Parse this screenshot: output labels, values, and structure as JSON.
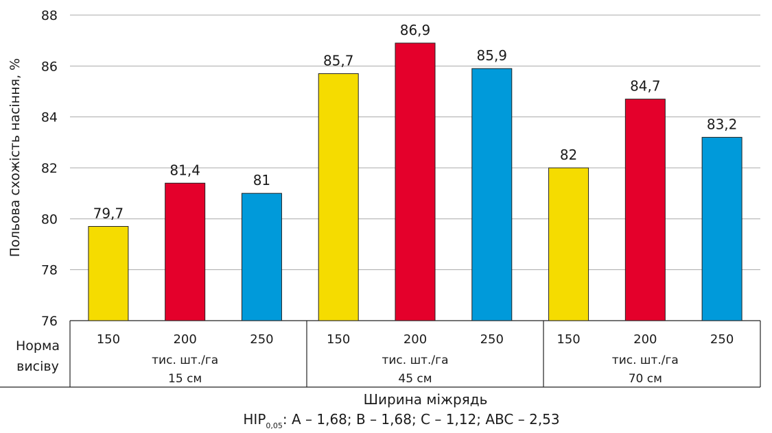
{
  "chart_data": {
    "type": "bar",
    "ylabel": "Польова схожість насіння, %",
    "xlabel": "Ширина міжрядь",
    "ylim": [
      76,
      88
    ],
    "yticks": [
      76,
      78,
      80,
      82,
      84,
      86,
      88
    ],
    "grid": true,
    "row_header": [
      "Норма",
      "висіву"
    ],
    "groups": [
      {
        "label": "15 см",
        "unit": "тис. шт./га",
        "categories": [
          "150",
          "200",
          "250"
        ],
        "values": [
          79.7,
          81.4,
          81
        ],
        "value_labels": [
          "79,7",
          "81,4",
          "81"
        ]
      },
      {
        "label": "45 см",
        "unit": "тис. шт./га",
        "categories": [
          "150",
          "200",
          "250"
        ],
        "values": [
          85.7,
          86.9,
          85.9
        ],
        "value_labels": [
          "85,7",
          "86,9",
          "85,9"
        ]
      },
      {
        "label": "70 см",
        "unit": "тис. шт./га",
        "categories": [
          "150",
          "200",
          "250"
        ],
        "values": [
          82,
          84.7,
          83.2
        ],
        "value_labels": [
          "82",
          "84,7",
          "83,2"
        ]
      }
    ],
    "bar_colors": [
      "#f5dc00",
      "#e4002b",
      "#009ada"
    ],
    "footnote": {
      "prefix": "HIP",
      "subscript": "0,05",
      "text": ": A – 1,68; B – 1,68; C – 1,12; ABC – 2,53"
    }
  }
}
